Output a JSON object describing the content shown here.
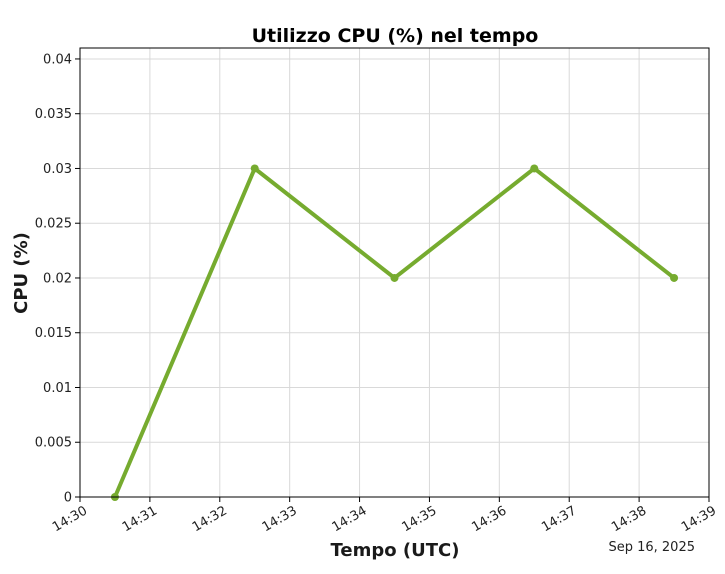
{
  "chart_data": {
    "type": "line",
    "title": "Utilizzo CPU (%) nel tempo",
    "xlabel": "Tempo (UTC)",
    "ylabel": "CPU (%)",
    "date_label": "Sep 16, 2025",
    "x_ticks": [
      "14:30",
      "14:31",
      "14:32",
      "14:33",
      "14:34",
      "14:35",
      "14:36",
      "14:37",
      "14:38",
      "14:39"
    ],
    "y_ticks": [
      "0",
      "0.005",
      "0.01",
      "0.015",
      "0.02",
      "0.025",
      "0.03",
      "0.035",
      "0.04"
    ],
    "xlim": [
      "14:30",
      "14:39"
    ],
    "ylim": [
      0,
      0.041
    ],
    "grid": true,
    "series": [
      {
        "x": [
          "14:30:30",
          "14:32:30",
          "14:34:30",
          "14:36:30",
          "14:38:30"
        ],
        "values": [
          0,
          0.03,
          0.02,
          0.03,
          0.02
        ],
        "color": "#76ab2f"
      }
    ]
  }
}
